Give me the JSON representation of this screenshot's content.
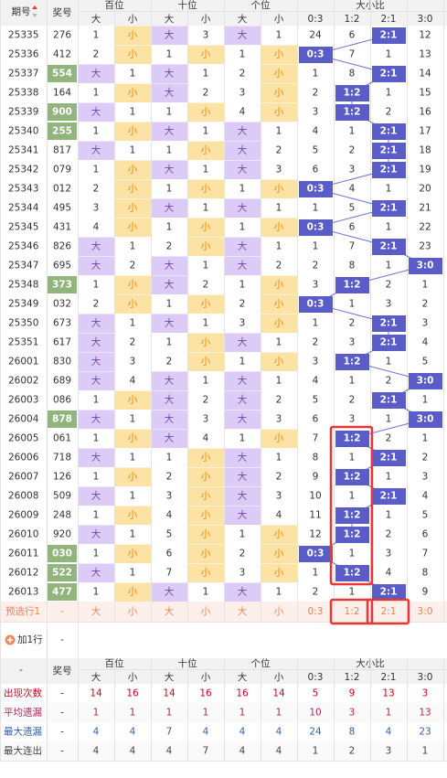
{
  "header": {
    "issue": "期号",
    "number": "奖号",
    "groups": [
      "百位",
      "十位",
      "个位",
      "大小比"
    ],
    "subheaders": [
      "大",
      "小",
      "大",
      "小",
      "大",
      "小",
      "0:3",
      "1:2",
      "2:1",
      "3:0"
    ]
  },
  "rows": [
    {
      "issue": "25335",
      "number": "276",
      "cells": [
        1,
        "小",
        "大",
        3,
        "大",
        1,
        24,
        6,
        "2:1",
        12
      ]
    },
    {
      "issue": "25336",
      "number": "412",
      "cells": [
        2,
        "小",
        1,
        "小",
        1,
        "小",
        "0:3",
        7,
        1,
        13
      ]
    },
    {
      "issue": "25337",
      "number": "554",
      "cells": [
        "大",
        1,
        "大",
        1,
        2,
        "小",
        1,
        8,
        "2:1",
        14
      ]
    },
    {
      "issue": "25338",
      "number": "164",
      "cells": [
        1,
        "小",
        "大",
        2,
        3,
        "小",
        2,
        "1:2",
        1,
        15
      ]
    },
    {
      "issue": "25339",
      "number": "900",
      "cells": [
        "大",
        1,
        1,
        "小",
        4,
        "小",
        3,
        "1:2",
        2,
        16
      ]
    },
    {
      "issue": "25340",
      "number": "255",
      "cells": [
        1,
        "小",
        "大",
        1,
        "大",
        1,
        4,
        1,
        "2:1",
        17
      ]
    },
    {
      "issue": "25341",
      "number": "817",
      "cells": [
        "大",
        1,
        1,
        "小",
        "大",
        2,
        5,
        2,
        "2:1",
        18
      ]
    },
    {
      "issue": "25342",
      "number": "079",
      "cells": [
        1,
        "小",
        "大",
        1,
        "大",
        3,
        6,
        3,
        "2:1",
        19
      ]
    },
    {
      "issue": "25343",
      "number": "012",
      "cells": [
        2,
        "小",
        1,
        "小",
        1,
        "小",
        "0:3",
        4,
        1,
        20
      ]
    },
    {
      "issue": "25344",
      "number": "495",
      "cells": [
        3,
        "小",
        "大",
        1,
        "大",
        1,
        1,
        5,
        "2:1",
        21
      ]
    },
    {
      "issue": "25345",
      "number": "431",
      "cells": [
        4,
        "小",
        1,
        "小",
        1,
        "小",
        "0:3",
        6,
        1,
        22
      ]
    },
    {
      "issue": "25346",
      "number": "826",
      "cells": [
        "大",
        1,
        2,
        "小",
        "大",
        1,
        1,
        7,
        "2:1",
        23
      ]
    },
    {
      "issue": "25347",
      "number": "695",
      "cells": [
        "大",
        2,
        "大",
        1,
        "大",
        2,
        2,
        8,
        1,
        "3:0"
      ]
    },
    {
      "issue": "25348",
      "number": "373",
      "cells": [
        1,
        "小",
        "大",
        2,
        1,
        "小",
        3,
        "1:2",
        2,
        1
      ]
    },
    {
      "issue": "25349",
      "number": "032",
      "cells": [
        2,
        "小",
        1,
        "小",
        2,
        "小",
        "0:3",
        1,
        3,
        2
      ]
    },
    {
      "issue": "25350",
      "number": "673",
      "cells": [
        "大",
        1,
        "大",
        1,
        3,
        "小",
        1,
        2,
        "2:1",
        3
      ]
    },
    {
      "issue": "25351",
      "number": "617",
      "cells": [
        "大",
        2,
        1,
        "小",
        "大",
        1,
        2,
        3,
        "2:1",
        4
      ]
    },
    {
      "issue": "26001",
      "number": "830",
      "cells": [
        "大",
        3,
        2,
        "小",
        1,
        "小",
        3,
        "1:2",
        1,
        5
      ]
    },
    {
      "issue": "26002",
      "number": "689",
      "cells": [
        "大",
        4,
        "大",
        1,
        "大",
        1,
        4,
        1,
        2,
        "3:0"
      ]
    },
    {
      "issue": "26003",
      "number": "086",
      "cells": [
        1,
        "小",
        "大",
        2,
        "大",
        2,
        5,
        2,
        "2:1",
        1
      ]
    },
    {
      "issue": "26004",
      "number": "878",
      "cells": [
        "大",
        1,
        "大",
        3,
        "大",
        3,
        6,
        3,
        1,
        "3:0"
      ]
    },
    {
      "issue": "26005",
      "number": "061",
      "cells": [
        1,
        "小",
        "大",
        4,
        1,
        "小",
        7,
        "1:2",
        2,
        1
      ]
    },
    {
      "issue": "26006",
      "number": "718",
      "cells": [
        "大",
        1,
        1,
        "小",
        "大",
        1,
        8,
        1,
        "2:1",
        2
      ]
    },
    {
      "issue": "26007",
      "number": "126",
      "cells": [
        1,
        "小",
        2,
        "小",
        "大",
        2,
        9,
        "1:2",
        1,
        3
      ]
    },
    {
      "issue": "26008",
      "number": "509",
      "cells": [
        "大",
        1,
        3,
        "小",
        "大",
        3,
        10,
        1,
        "2:1",
        4
      ]
    },
    {
      "issue": "26009",
      "number": "248",
      "cells": [
        1,
        "小",
        4,
        "小",
        "大",
        4,
        11,
        "1:2",
        1,
        5
      ]
    },
    {
      "issue": "26010",
      "number": "920",
      "cells": [
        "大",
        1,
        5,
        "小",
        1,
        "小",
        12,
        "1:2",
        2,
        6
      ]
    },
    {
      "issue": "26011",
      "number": "030",
      "cells": [
        1,
        "小",
        6,
        "小",
        2,
        "小",
        "0:3",
        1,
        3,
        7
      ]
    },
    {
      "issue": "26012",
      "number": "522",
      "cells": [
        "大",
        1,
        7,
        "小",
        3,
        "小",
        1,
        "1:2",
        4,
        8
      ]
    },
    {
      "issue": "26013",
      "number": "477",
      "cells": [
        1,
        "小",
        "大",
        1,
        "大",
        1,
        2,
        1,
        "2:1",
        9
      ]
    }
  ],
  "preview": {
    "label": "预选行1",
    "number": "-",
    "cells": [
      "大",
      "小",
      "大",
      "小",
      "大",
      "小",
      "0:3",
      "1:2",
      "2:1",
      "3:0"
    ]
  },
  "add_row": {
    "label": "加1行",
    "number": "-"
  },
  "footer_header": {
    "issue": "-",
    "number": "奖号"
  },
  "stats": [
    {
      "label": "出现次数",
      "number": "-",
      "values": [
        14,
        16,
        14,
        16,
        16,
        14,
        5,
        9,
        13,
        3
      ]
    },
    {
      "label": "平均遗漏",
      "number": "-",
      "values": [
        1,
        1,
        1,
        1,
        1,
        1,
        10,
        3,
        1,
        13
      ]
    },
    {
      "label": "最大遗漏",
      "number": "-",
      "values": [
        4,
        4,
        7,
        4,
        4,
        4,
        24,
        8,
        4,
        23
      ]
    },
    {
      "label": "最大连出",
      "number": "-",
      "values": [
        4,
        4,
        4,
        7,
        4,
        4,
        1,
        2,
        3,
        1
      ]
    }
  ]
}
